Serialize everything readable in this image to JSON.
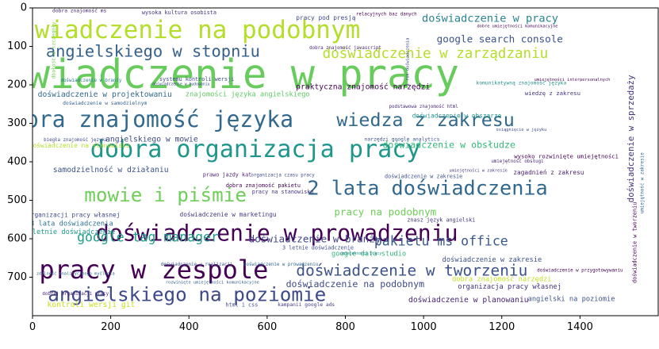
{
  "chart_data": {
    "type": "wordcloud",
    "title": "",
    "xlabel": "",
    "ylabel": "",
    "xlim": [
      0,
      1600
    ],
    "ylim": [
      800,
      0
    ],
    "x_ticks": [
      0,
      200,
      400,
      600,
      800,
      1000,
      1200,
      1400
    ],
    "y_ticks": [
      0,
      100,
      200,
      300,
      400,
      500,
      600,
      700
    ],
    "grid": false,
    "background": "#ffffff",
    "colormap": "viridis",
    "words": [
      {
        "text": "doświadczenie w pracy",
        "x": 445,
        "y": 172,
        "size": 104,
        "color": "#67cc5c"
      },
      {
        "text": "doświadczenie na podobnym",
        "x": 365,
        "y": 58,
        "size": 64,
        "color": "#b4dd2c"
      },
      {
        "text": "dobra organizacja pracy",
        "x": 570,
        "y": 368,
        "size": 62,
        "color": "#1f968b"
      },
      {
        "text": "dobra znajomość języka",
        "x": 290,
        "y": 290,
        "size": 58,
        "color": "#31688e"
      },
      {
        "text": "doświadczenie w prowadzeniu",
        "x": 625,
        "y": 586,
        "size": 58,
        "color": "#440154"
      },
      {
        "text": "pracy w zespole",
        "x": 310,
        "y": 680,
        "size": 66,
        "color": "#440154"
      },
      {
        "text": "angielskiego na poziomie",
        "x": 395,
        "y": 744,
        "size": 50,
        "color": "#3e4989"
      },
      {
        "text": "2 lata doświadczenia",
        "x": 1010,
        "y": 468,
        "size": 52,
        "color": "#31688e"
      },
      {
        "text": "mowie i piśmie",
        "x": 340,
        "y": 486,
        "size": 50,
        "color": "#6ece58"
      },
      {
        "text": "wiedza z zakresu",
        "x": 1005,
        "y": 292,
        "size": 48,
        "color": "#31688e"
      },
      {
        "text": "angielskiego w stopniu",
        "x": 308,
        "y": 112,
        "size": 42,
        "color": "#35608d"
      },
      {
        "text": "doświadczenie w zarządzaniu",
        "x": 1030,
        "y": 120,
        "size": 36,
        "color": "#b5de2b"
      },
      {
        "text": "doświadczenie w tworzeniu",
        "x": 970,
        "y": 682,
        "size": 40,
        "color": "#3b528b"
      },
      {
        "text": "google tag manager",
        "x": 295,
        "y": 596,
        "size": 34,
        "color": "#1f9e89"
      },
      {
        "text": "pakietu ms office",
        "x": 1045,
        "y": 606,
        "size": 34,
        "color": "#38598c"
      },
      {
        "text": "doświadczenie w pracy",
        "x": 1170,
        "y": 28,
        "size": 28,
        "color": "#26828e"
      },
      {
        "text": "google search console",
        "x": 1195,
        "y": 80,
        "size": 26,
        "color": "#3b528b"
      },
      {
        "text": "doświadczenie w branży",
        "x": 722,
        "y": 600,
        "size": 26,
        "color": "#414487"
      },
      {
        "text": "pracy na podobnym",
        "x": 902,
        "y": 530,
        "size": 26,
        "color": "#6ece58"
      },
      {
        "text": "doświadczenie w obsłudze",
        "x": 1065,
        "y": 356,
        "size": 24,
        "color": "#35b779"
      },
      {
        "text": "doświadczenie w sprzedaży",
        "x": 1530,
        "y": 340,
        "size": 22,
        "color": "#46337e",
        "rotate": -90
      },
      {
        "text": "doświadczenie na podobnym",
        "x": 825,
        "y": 718,
        "size": 24,
        "color": "#3e4a89"
      },
      {
        "text": "doświadczenie w planowaniu",
        "x": 1115,
        "y": 760,
        "size": 20,
        "color": "#482475"
      },
      {
        "text": "angielski na poziomie",
        "x": 1378,
        "y": 758,
        "size": 18,
        "color": "#3b528b"
      },
      {
        "text": "doświadczenie w projektowaniu",
        "x": 185,
        "y": 226,
        "size": 20,
        "color": "#31688e"
      },
      {
        "text": "znajomości języka angielskiego",
        "x": 550,
        "y": 226,
        "size": 18,
        "color": "#5ec962"
      },
      {
        "text": "samodzielność w działaniu",
        "x": 200,
        "y": 422,
        "size": 20,
        "color": "#3b528b"
      },
      {
        "text": "angielskiego w mowie",
        "x": 305,
        "y": 342,
        "size": 20,
        "color": "#3e4a89"
      },
      {
        "text": "praktyczna znajomość narzędzi",
        "x": 845,
        "y": 206,
        "size": 20,
        "color": "#440154"
      },
      {
        "text": "doświadczenie w zakresie",
        "x": 1175,
        "y": 656,
        "size": 18,
        "color": "#3b528b"
      },
      {
        "text": "doświadczenie w marketingu",
        "x": 500,
        "y": 537,
        "size": 16,
        "color": "#443983"
      },
      {
        "text": "organizacja pracy własnej",
        "x": 1220,
        "y": 726,
        "size": 18,
        "color": "#46337e"
      },
      {
        "text": "dobra znajomość narzędzi",
        "x": 1200,
        "y": 706,
        "size": 18,
        "color": "#c2df23"
      },
      {
        "text": "google data studio",
        "x": 860,
        "y": 640,
        "size": 18,
        "color": "#35b779"
      },
      {
        "text": "kontroli wersji git",
        "x": 150,
        "y": 772,
        "size": 20,
        "color": "#c8e020"
      },
      {
        "text": "3 lata doświadczenia",
        "x": 100,
        "y": 562,
        "size": 18,
        "color": "#2c728e"
      },
      {
        "text": "2 letnie doświadczenie",
        "x": 95,
        "y": 584,
        "size": 18,
        "color": "#1f9a8a"
      },
      {
        "text": "organizacji pracy własnej",
        "x": 105,
        "y": 538,
        "size": 16,
        "color": "#3e4989"
      },
      {
        "text": "doświadczenie na stanowisku",
        "x": 120,
        "y": 358,
        "size": 16,
        "color": "#b5de2b"
      },
      {
        "text": "wysoko rozwinięte umiejętności",
        "x": 1365,
        "y": 386,
        "size": 15,
        "color": "#440154"
      },
      {
        "text": "doświadczenie w obszarze",
        "x": 1085,
        "y": 280,
        "size": 16,
        "color": "#21918c"
      },
      {
        "text": "zagadnień z zakresu",
        "x": 1320,
        "y": 428,
        "size": 16,
        "color": "#481f70"
      },
      {
        "text": "doświadczenie w samodzielnym",
        "x": 185,
        "y": 248,
        "size": 13,
        "color": "#35608d"
      },
      {
        "text": "dobra znajomość ms",
        "x": 120,
        "y": 8,
        "size": 13,
        "color": "#482878"
      },
      {
        "text": "wysoka kultura osobista",
        "x": 375,
        "y": 12,
        "size": 14,
        "color": "#46337e"
      },
      {
        "text": "pracy pod presją",
        "x": 750,
        "y": 26,
        "size": 16,
        "color": "#3e4989"
      },
      {
        "text": "relacyjnych baz danych",
        "x": 905,
        "y": 18,
        "size": 12,
        "color": "#440154"
      },
      {
        "text": "doświadczenie w branży",
        "x": 150,
        "y": 190,
        "size": 12,
        "color": "#2a788e"
      },
      {
        "text": "systemu kontroli wersji",
        "x": 420,
        "y": 186,
        "size": 14,
        "color": "#3e4989"
      },
      {
        "text": "dobra znajomość javascript",
        "x": 800,
        "y": 105,
        "size": 12,
        "color": "#482878"
      },
      {
        "text": "komunikatywną znajomość języka",
        "x": 1250,
        "y": 196,
        "size": 13,
        "color": "#21918c"
      },
      {
        "text": "wiedzę z zakresu",
        "x": 1330,
        "y": 222,
        "size": 15,
        "color": "#46337e"
      },
      {
        "text": "umiejętności interpersonalnych",
        "x": 1380,
        "y": 188,
        "size": 11,
        "color": "#440154"
      },
      {
        "text": "podstawowa znajomość html",
        "x": 1000,
        "y": 258,
        "size": 12,
        "color": "#482878"
      },
      {
        "text": "narzędzi google analytics",
        "x": 945,
        "y": 342,
        "size": 13,
        "color": "#3b528b"
      },
      {
        "text": "doświadczenie w zakresie",
        "x": 1000,
        "y": 438,
        "size": 14,
        "color": "#3b528b"
      },
      {
        "text": "znasz język angielski",
        "x": 1045,
        "y": 552,
        "size": 14,
        "color": "#443983"
      },
      {
        "text": "organizacja czasu pracy",
        "x": 640,
        "y": 436,
        "size": 12,
        "color": "#3e4a89"
      },
      {
        "text": "dobra znajomość pakietu",
        "x": 590,
        "y": 462,
        "size": 14,
        "color": "#440154"
      },
      {
        "text": "pracy na stanowisku",
        "x": 640,
        "y": 478,
        "size": 14,
        "color": "#46337e"
      },
      {
        "text": "prawo jazdy kat",
        "x": 498,
        "y": 434,
        "size": 14,
        "color": "#481f70"
      },
      {
        "text": "biegła znajomość języka",
        "x": 110,
        "y": 344,
        "size": 12,
        "color": "#3e4a89"
      },
      {
        "text": "3 letnie doświadczenie",
        "x": 730,
        "y": 624,
        "size": 14,
        "color": "#3e4989"
      },
      {
        "text": "doświadczenie w realizacji",
        "x": 420,
        "y": 668,
        "size": 12,
        "color": "#3b528b"
      },
      {
        "text": "doświadczenie w prowadzeniu",
        "x": 635,
        "y": 668,
        "size": 12,
        "color": "#31688e"
      },
      {
        "text": "dobrej organizacji pracy",
        "x": 110,
        "y": 744,
        "size": 12,
        "color": "#482475"
      },
      {
        "text": "html i css",
        "x": 535,
        "y": 772,
        "size": 14,
        "color": "#3e4989"
      },
      {
        "text": "kampanii google ads",
        "x": 700,
        "y": 772,
        "size": 13,
        "color": "#443983"
      },
      {
        "text": "doświadczenie w przygotowywaniu",
        "x": 1400,
        "y": 684,
        "size": 12,
        "color": "#440154"
      },
      {
        "text": "osiągnięcie w języku",
        "x": 1250,
        "y": 318,
        "size": 11,
        "color": "#3b528b"
      },
      {
        "text": "umiejętności w zakresie",
        "x": 1140,
        "y": 424,
        "size": 11,
        "color": "#46337e"
      },
      {
        "text": "1 rok doświadczenia",
        "x": 960,
        "y": 140,
        "size": 11,
        "color": "#3e4989",
        "rotate": -90
      },
      {
        "text": "umiejętności pracy",
        "x": 840,
        "y": 640,
        "size": 10,
        "color": "#26828e"
      },
      {
        "text": "dbałość o szczegóły",
        "x": 55,
        "y": 110,
        "size": 13,
        "color": "#7ad151",
        "rotate": -90
      },
      {
        "text": "doświadczenie w tworzeniu",
        "x": 1540,
        "y": 610,
        "size": 14,
        "color": "#440154",
        "rotate": -90
      },
      {
        "text": "umiejętność w zakresie",
        "x": 1560,
        "y": 455,
        "size": 12,
        "color": "#31688e",
        "rotate": -90
      },
      {
        "text": "rozwinięte umiejętności komunikacyjne",
        "x": 460,
        "y": 714,
        "size": 11,
        "color": "#35608d"
      },
      {
        "text": "dobre umiejętności komunikacyjne",
        "x": 1240,
        "y": 48,
        "size": 11,
        "color": "#440154"
      },
      {
        "text": "umiejętność obsługi",
        "x": 1240,
        "y": 400,
        "size": 12,
        "color": "#482878"
      },
      {
        "text": "doświadczenie w budowaniu",
        "x": 380,
        "y": 200,
        "size": 10,
        "color": "#3e4a89"
      },
      {
        "text": "zdolność analitycznego myślenia",
        "x": 110,
        "y": 692,
        "size": 11,
        "color": "#31688e"
      }
    ]
  }
}
